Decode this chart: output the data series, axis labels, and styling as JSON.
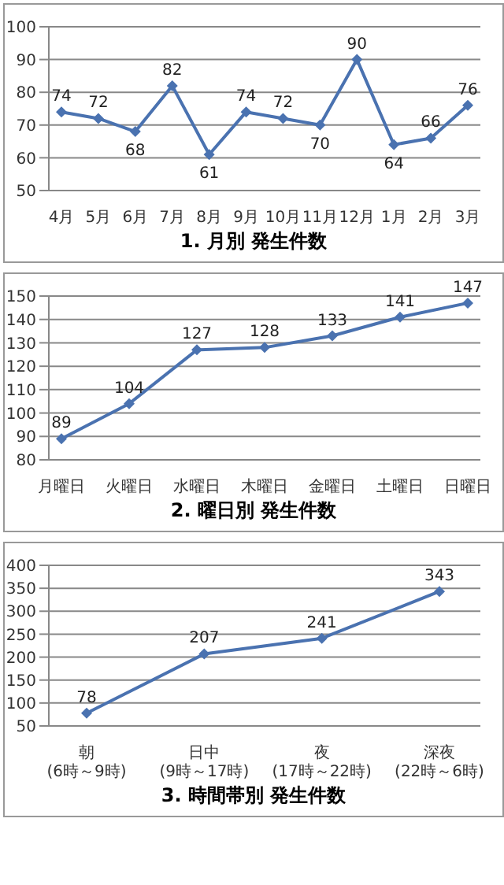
{
  "chart_data": [
    {
      "type": "line",
      "title": "1. 月別 発生件数",
      "categories": [
        "4月",
        "5月",
        "6月",
        "7月",
        "8月",
        "9月",
        "10月",
        "11月",
        "12月",
        "1月",
        "2月",
        "3月"
      ],
      "series": [
        {
          "color": "#4a72b0",
          "values": [
            74,
            72,
            68,
            82,
            61,
            74,
            72,
            70,
            90,
            64,
            66,
            76
          ]
        }
      ],
      "ylim": [
        50,
        100
      ],
      "yticks": [
        50,
        60,
        70,
        80,
        90,
        100
      ],
      "grid": "y",
      "marker": "diamond",
      "data_labels": true
    },
    {
      "type": "line",
      "title": "2. 曜日別 発生件数",
      "categories": [
        "月曜日",
        "火曜日",
        "水曜日",
        "木曜日",
        "金曜日",
        "土曜日",
        "日曜日"
      ],
      "series": [
        {
          "color": "#4a72b0",
          "values": [
            89,
            104,
            127,
            128,
            133,
            141,
            147
          ]
        }
      ],
      "ylim": [
        80,
        150
      ],
      "yticks": [
        80,
        90,
        100,
        110,
        120,
        130,
        140,
        150
      ],
      "grid": "y",
      "marker": "diamond",
      "data_labels": true
    },
    {
      "type": "line",
      "title": "3. 時間帯別 発生件数",
      "categories": [
        "朝(6時～9時)",
        "日中(9時～17時)",
        "夜(17時～22時)",
        "深夜(22時～6時)"
      ],
      "series": [
        {
          "color": "#4a72b0",
          "values": [
            78,
            207,
            241,
            343
          ]
        }
      ],
      "ylim": [
        50,
        400
      ],
      "yticks": [
        50,
        100,
        150,
        200,
        250,
        300,
        350,
        400
      ],
      "grid": "y",
      "marker": "diamond",
      "data_labels": true
    }
  ]
}
